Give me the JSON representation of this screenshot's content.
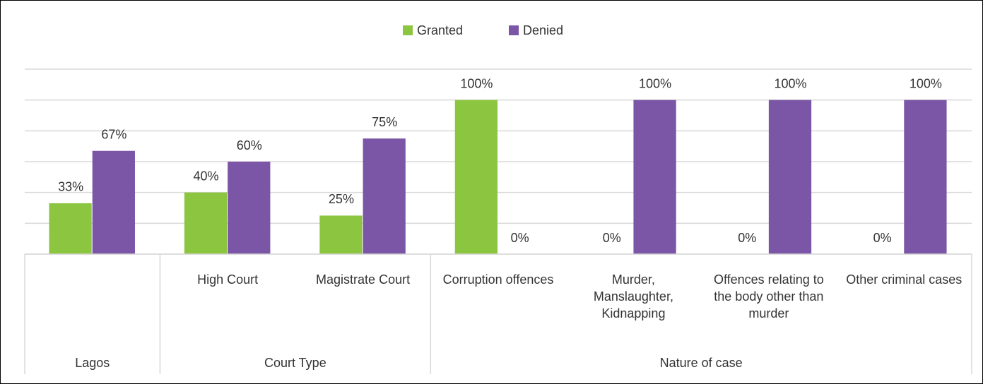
{
  "chart_data": {
    "type": "bar",
    "groups": [
      {
        "label": "Lagos",
        "categories": [
          null
        ]
      },
      {
        "label": "Court Type",
        "categories": [
          "High Court",
          "Magistrate Court"
        ]
      },
      {
        "label": "Nature of case",
        "categories": [
          "Corruption offences",
          "Murder, Manslaughter, Kidnapping",
          "Offences relating to the body other than murder",
          "Other criminal cases"
        ]
      }
    ],
    "series": [
      {
        "name": "Granted",
        "color": "#8cc540",
        "values": [
          33,
          40,
          25,
          100,
          0,
          0,
          0
        ],
        "value_labels": [
          "33%",
          "40%",
          "25%",
          "100%",
          "0%",
          "0%",
          "0%"
        ]
      },
      {
        "name": "Denied",
        "color": "#7b55a6",
        "values": [
          67,
          60,
          75,
          0,
          100,
          100,
          100
        ],
        "value_labels": [
          "67%",
          "60%",
          "75%",
          "0%",
          "100%",
          "100%",
          "100%"
        ]
      }
    ],
    "ylim": [
      0,
      120
    ],
    "yticks": [
      0,
      20,
      40,
      60,
      80,
      100,
      120
    ],
    "grid": true,
    "legend": "top"
  }
}
